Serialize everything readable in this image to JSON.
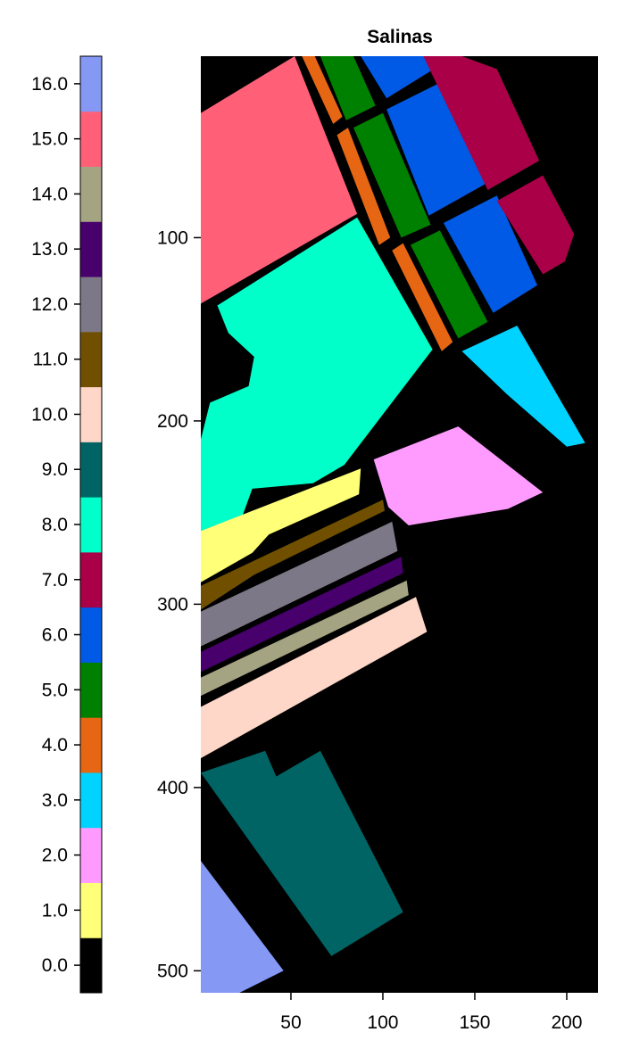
{
  "chart_data": {
    "type": "heatmap",
    "title": "Salinas",
    "xlabel": "",
    "ylabel": "",
    "xlim": [
      1,
      217
    ],
    "ylim": [
      1,
      512
    ],
    "y_reversed": true,
    "x_ticks": [
      50,
      100,
      150,
      200
    ],
    "x_tick_labels": [
      "50",
      "100",
      "150",
      "200"
    ],
    "y_ticks": [
      100,
      200,
      300,
      400,
      500
    ],
    "y_tick_labels": [
      "100",
      "200",
      "300",
      "400",
      "500"
    ],
    "colorbar": {
      "range": [
        -0.5,
        16.5
      ],
      "ticks": [
        0,
        1,
        2,
        3,
        4,
        5,
        6,
        7,
        8,
        9,
        10,
        11,
        12,
        13,
        14,
        15,
        16
      ],
      "tick_labels": [
        "0.0",
        "1.0",
        "2.0",
        "3.0",
        "4.0",
        "5.0",
        "6.0",
        "7.0",
        "8.0",
        "9.0",
        "10.0",
        "11.0",
        "12.0",
        "13.0",
        "14.0",
        "15.0",
        "16.0"
      ],
      "colors": [
        "#000000",
        "#ffff78",
        "#ff9bff",
        "#00d3ff",
        "#e66614",
        "#008000",
        "#005ae6",
        "#aa0048",
        "#00ffc9",
        "#006464",
        "#ffd7c8",
        "#705000",
        "#7d7887",
        "#48006c",
        "#a4a482",
        "#ff6078",
        "#8498f4"
      ]
    },
    "regions": [
      {
        "class": 15,
        "polygon": [
          [
            1,
            32
          ],
          [
            52,
            1
          ],
          [
            86,
            87
          ],
          [
            1,
            136
          ]
        ]
      },
      {
        "class": 4,
        "polygon": [
          [
            56,
            1
          ],
          [
            63,
            1
          ],
          [
            78,
            34
          ],
          [
            73,
            38
          ]
        ]
      },
      {
        "class": 4,
        "polygon": [
          [
            75,
            44
          ],
          [
            81,
            40
          ],
          [
            104,
            100
          ],
          [
            98,
            104
          ]
        ]
      },
      {
        "class": 4,
        "polygon": [
          [
            105,
            107
          ],
          [
            111,
            103
          ],
          [
            138,
            157
          ],
          [
            132,
            162
          ]
        ]
      },
      {
        "class": 5,
        "polygon": [
          [
            66,
            1
          ],
          [
            84,
            1
          ],
          [
            96,
            28
          ],
          [
            80,
            36
          ]
        ]
      },
      {
        "class": 5,
        "polygon": [
          [
            84,
            40
          ],
          [
            100,
            32
          ],
          [
            126,
            93
          ],
          [
            110,
            100
          ]
        ]
      },
      {
        "class": 5,
        "polygon": [
          [
            115,
            104
          ],
          [
            131,
            96
          ],
          [
            157,
            146
          ],
          [
            141,
            155
          ]
        ]
      },
      {
        "class": 6,
        "polygon": [
          [
            88,
            1
          ],
          [
            122,
            1
          ],
          [
            131,
            6
          ],
          [
            102,
            24
          ]
        ]
      },
      {
        "class": 6,
        "polygon": [
          [
            102,
            30
          ],
          [
            134,
            14
          ],
          [
            157,
            70
          ],
          [
            125,
            88
          ]
        ]
      },
      {
        "class": 6,
        "polygon": [
          [
            133,
            92
          ],
          [
            162,
            77
          ],
          [
            184,
            126
          ],
          [
            160,
            141
          ]
        ]
      },
      {
        "class": 7,
        "polygon": [
          [
            122,
            1
          ],
          [
            143,
            1
          ],
          [
            162,
            8
          ],
          [
            185,
            58
          ],
          [
            157,
            74
          ]
        ]
      },
      {
        "class": 7,
        "polygon": [
          [
            162,
            80
          ],
          [
            187,
            66
          ],
          [
            204,
            98
          ],
          [
            199,
            113
          ],
          [
            187,
            120
          ]
        ]
      },
      {
        "class": 8,
        "polygon": [
          [
            10,
            137
          ],
          [
            86,
            89
          ],
          [
            127,
            161
          ],
          [
            79,
            224
          ],
          [
            62,
            234
          ],
          [
            29,
            237
          ],
          [
            17,
            270
          ],
          [
            1,
            276
          ],
          [
            1,
            210
          ],
          [
            6,
            190
          ],
          [
            27,
            181
          ],
          [
            30,
            165
          ],
          [
            16,
            152
          ]
        ]
      },
      {
        "class": 3,
        "polygon": [
          [
            143,
            162
          ],
          [
            173,
            148
          ],
          [
            210,
            212
          ],
          [
            200,
            214
          ],
          [
            167,
            185
          ]
        ]
      },
      {
        "class": 2,
        "polygon": [
          [
            95,
            221
          ],
          [
            118,
            212
          ],
          [
            141,
            203
          ],
          [
            187,
            239
          ],
          [
            168,
            248
          ],
          [
            114,
            257
          ],
          [
            103,
            247
          ]
        ]
      },
      {
        "class": 1,
        "polygon": [
          [
            1,
            260
          ],
          [
            88,
            226
          ],
          [
            87,
            240
          ],
          [
            38,
            262
          ],
          [
            29,
            272
          ],
          [
            1,
            288
          ]
        ]
      },
      {
        "class": 11,
        "polygon": [
          [
            1,
            290
          ],
          [
            100,
            243
          ],
          [
            101,
            249
          ],
          [
            30,
            284
          ],
          [
            1,
            303
          ]
        ]
      },
      {
        "class": 12,
        "polygon": [
          [
            1,
            304
          ],
          [
            105,
            255
          ],
          [
            108,
            271
          ],
          [
            1,
            323
          ]
        ]
      },
      {
        "class": 13,
        "polygon": [
          [
            1,
            326
          ],
          [
            110,
            274
          ],
          [
            111,
            283
          ],
          [
            1,
            337
          ]
        ]
      },
      {
        "class": 14,
        "polygon": [
          [
            1,
            340
          ],
          [
            113,
            287
          ],
          [
            114,
            295
          ],
          [
            1,
            350
          ]
        ]
      },
      {
        "class": 10,
        "polygon": [
          [
            1,
            356
          ],
          [
            118,
            296
          ],
          [
            124,
            315
          ],
          [
            1,
            384
          ]
        ]
      },
      {
        "class": 9,
        "polygon": [
          [
            1,
            392
          ],
          [
            36,
            380
          ],
          [
            42,
            394
          ],
          [
            66,
            380
          ],
          [
            111,
            468
          ],
          [
            72,
            492
          ]
        ]
      },
      {
        "class": 16,
        "polygon": [
          [
            1,
            440
          ],
          [
            46,
            500
          ],
          [
            22,
            512
          ],
          [
            1,
            512
          ]
        ]
      }
    ]
  }
}
